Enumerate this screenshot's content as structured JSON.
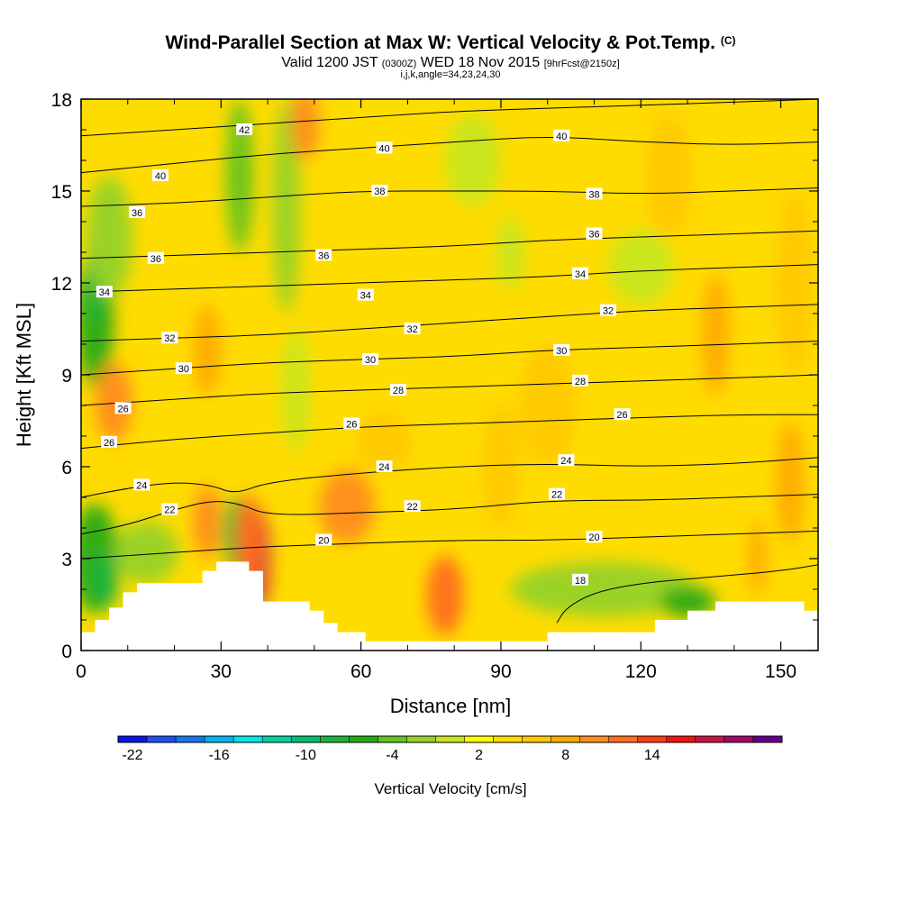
{
  "header": {
    "title": "Wind-Parallel Section at Max W: Vertical Velocity & Pot.Temp.",
    "copyright": "(C)",
    "valid_prefix": "Valid 1200 JST",
    "valid_utc": "(0300Z)",
    "valid_date": "WED 18 Nov 2015",
    "forecast": "[9hrFcst@2150z]",
    "grid_info": "i,j,k,angle=34,23,24,30"
  },
  "chart_data": {
    "type": "heatmap",
    "xlabel": "Distance [nm]",
    "ylabel": "Height [Kft MSL]",
    "xlim": [
      0,
      158
    ],
    "ylim": [
      0,
      18
    ],
    "x_ticks": [
      0,
      30,
      60,
      90,
      120,
      150
    ],
    "y_ticks": [
      0,
      3,
      6,
      9,
      12,
      15,
      18
    ],
    "colorbar": {
      "label": "Vertical Velocity [cm/s]",
      "tick_labels": [
        "-22",
        "-16",
        "-10",
        "-4",
        "2",
        "8",
        "14"
      ],
      "tick_values": [
        -22,
        -16,
        -10,
        -4,
        2,
        8,
        14
      ],
      "range": [
        -22,
        20
      ],
      "step": 2,
      "colors": [
        "#0a14e6",
        "#1e50f0",
        "#1478f0",
        "#00b4f0",
        "#00e6e6",
        "#00d2a0",
        "#00c070",
        "#1eb43c",
        "#28aa14",
        "#64c31e",
        "#96d228",
        "#c8e61e",
        "#ffff00",
        "#ffdc00",
        "#ffc800",
        "#ffaa00",
        "#ff8c1e",
        "#ff6e1e",
        "#ff3c14",
        "#f01414",
        "#c81446",
        "#a00a64",
        "#64008c"
      ]
    },
    "terrain": [
      [
        0,
        0.6
      ],
      [
        3,
        0.6
      ],
      [
        3,
        1.0
      ],
      [
        6,
        1.0
      ],
      [
        6,
        1.4
      ],
      [
        9,
        1.4
      ],
      [
        9,
        1.9
      ],
      [
        12,
        1.9
      ],
      [
        12,
        2.2
      ],
      [
        26,
        2.2
      ],
      [
        26,
        2.6
      ],
      [
        29,
        2.6
      ],
      [
        29,
        2.9
      ],
      [
        36,
        2.9
      ],
      [
        36,
        2.6
      ],
      [
        39,
        2.6
      ],
      [
        39,
        1.6
      ],
      [
        49,
        1.6
      ],
      [
        49,
        1.3
      ],
      [
        52,
        1.3
      ],
      [
        52,
        0.9
      ],
      [
        55,
        0.9
      ],
      [
        55,
        0.6
      ],
      [
        61,
        0.6
      ],
      [
        61,
        0.3
      ],
      [
        100,
        0.3
      ],
      [
        100,
        0.6
      ],
      [
        123,
        0.6
      ],
      [
        123,
        1.0
      ],
      [
        130,
        1.0
      ],
      [
        130,
        1.3
      ],
      [
        136,
        1.3
      ],
      [
        136,
        1.6
      ],
      [
        155,
        1.6
      ],
      [
        155,
        1.3
      ],
      [
        158,
        1.3
      ]
    ],
    "theta_contours": [
      {
        "value": "18",
        "points": [
          [
            102,
            0.9
          ],
          [
            104,
            1.4
          ],
          [
            110,
            1.9
          ],
          [
            120,
            2.2
          ],
          [
            135,
            2.4
          ],
          [
            150,
            2.6
          ],
          [
            158,
            2.8
          ]
        ]
      },
      {
        "value": "20",
        "points": [
          [
            0,
            3.0
          ],
          [
            20,
            3.2
          ],
          [
            40,
            3.4
          ],
          [
            60,
            3.5
          ],
          [
            80,
            3.6
          ],
          [
            100,
            3.6
          ],
          [
            120,
            3.7
          ],
          [
            140,
            3.8
          ],
          [
            158,
            3.9
          ]
        ]
      },
      {
        "value": "22",
        "points": [
          [
            0,
            3.8
          ],
          [
            10,
            4.1
          ],
          [
            20,
            4.6
          ],
          [
            28,
            4.9
          ],
          [
            34,
            4.8
          ],
          [
            40,
            4.4
          ],
          [
            60,
            4.5
          ],
          [
            80,
            4.6
          ],
          [
            100,
            4.9
          ],
          [
            120,
            4.9
          ],
          [
            140,
            5.0
          ],
          [
            158,
            5.1
          ]
        ]
      },
      {
        "value": "24",
        "points": [
          [
            0,
            5.0
          ],
          [
            10,
            5.3
          ],
          [
            20,
            5.5
          ],
          [
            28,
            5.4
          ],
          [
            33,
            5.1
          ],
          [
            40,
            5.5
          ],
          [
            60,
            5.8
          ],
          [
            80,
            6.0
          ],
          [
            100,
            6.1
          ],
          [
            120,
            6.0
          ],
          [
            140,
            6.1
          ],
          [
            158,
            6.3
          ]
        ]
      },
      {
        "value": "26",
        "points": [
          [
            0,
            6.6
          ],
          [
            20,
            6.9
          ],
          [
            40,
            7.1
          ],
          [
            60,
            7.3
          ],
          [
            80,
            7.4
          ],
          [
            100,
            7.5
          ],
          [
            120,
            7.6
          ],
          [
            140,
            7.7
          ],
          [
            158,
            7.7
          ]
        ]
      },
      {
        "value": "28",
        "points": [
          [
            0,
            8.0
          ],
          [
            20,
            8.2
          ],
          [
            40,
            8.4
          ],
          [
            60,
            8.5
          ],
          [
            80,
            8.6
          ],
          [
            100,
            8.7
          ],
          [
            120,
            8.8
          ],
          [
            140,
            8.9
          ],
          [
            158,
            9.0
          ]
        ]
      },
      {
        "value": "30",
        "points": [
          [
            0,
            9.0
          ],
          [
            20,
            9.2
          ],
          [
            40,
            9.4
          ],
          [
            60,
            9.5
          ],
          [
            80,
            9.6
          ],
          [
            100,
            9.8
          ],
          [
            120,
            9.9
          ],
          [
            140,
            10.0
          ],
          [
            158,
            10.1
          ]
        ]
      },
      {
        "value": "32",
        "points": [
          [
            0,
            10.1
          ],
          [
            20,
            10.2
          ],
          [
            40,
            10.3
          ],
          [
            60,
            10.5
          ],
          [
            80,
            10.7
          ],
          [
            100,
            10.9
          ],
          [
            120,
            11.1
          ],
          [
            140,
            11.2
          ],
          [
            158,
            11.3
          ]
        ]
      },
      {
        "value": "34",
        "points": [
          [
            0,
            11.7
          ],
          [
            20,
            11.8
          ],
          [
            40,
            11.9
          ],
          [
            60,
            12.0
          ],
          [
            80,
            12.1
          ],
          [
            100,
            12.2
          ],
          [
            120,
            12.4
          ],
          [
            140,
            12.5
          ],
          [
            158,
            12.6
          ]
        ]
      },
      {
        "value": "36",
        "points": [
          [
            0,
            12.8
          ],
          [
            20,
            12.9
          ],
          [
            40,
            13.0
          ],
          [
            60,
            13.1
          ],
          [
            80,
            13.2
          ],
          [
            100,
            13.4
          ],
          [
            120,
            13.5
          ],
          [
            140,
            13.6
          ],
          [
            158,
            13.7
          ]
        ]
      },
      {
        "value": "38",
        "points": [
          [
            0,
            14.5
          ],
          [
            20,
            14.6
          ],
          [
            40,
            14.8
          ],
          [
            60,
            15.0
          ],
          [
            80,
            15.0
          ],
          [
            100,
            15.0
          ],
          [
            120,
            14.9
          ],
          [
            140,
            15.0
          ],
          [
            158,
            15.1
          ]
        ]
      },
      {
        "value": "40",
        "points": [
          [
            0,
            15.6
          ],
          [
            20,
            15.9
          ],
          [
            40,
            16.2
          ],
          [
            60,
            16.4
          ],
          [
            80,
            16.6
          ],
          [
            100,
            16.8
          ],
          [
            120,
            16.6
          ],
          [
            140,
            16.5
          ],
          [
            158,
            16.6
          ]
        ]
      },
      {
        "value": "42",
        "points": [
          [
            0,
            16.8
          ],
          [
            20,
            17.0
          ],
          [
            40,
            17.2
          ],
          [
            60,
            17.4
          ],
          [
            80,
            17.6
          ],
          [
            100,
            17.7
          ],
          [
            120,
            17.8
          ],
          [
            140,
            17.9
          ],
          [
            158,
            18.0
          ]
        ]
      }
    ],
    "contour_labels": [
      {
        "text": "18",
        "x": 107,
        "y": 2.3
      },
      {
        "text": "20",
        "x": 52,
        "y": 3.6
      },
      {
        "text": "20",
        "x": 110,
        "y": 3.7
      },
      {
        "text": "22",
        "x": 19,
        "y": 4.6
      },
      {
        "text": "22",
        "x": 71,
        "y": 4.7
      },
      {
        "text": "22",
        "x": 102,
        "y": 5.1
      },
      {
        "text": "24",
        "x": 13,
        "y": 5.4
      },
      {
        "text": "24",
        "x": 65,
        "y": 6.0
      },
      {
        "text": "24",
        "x": 104,
        "y": 6.2
      },
      {
        "text": "26",
        "x": 6,
        "y": 6.8
      },
      {
        "text": "26",
        "x": 58,
        "y": 7.4
      },
      {
        "text": "26",
        "x": 116,
        "y": 7.7
      },
      {
        "text": "26",
        "x": 9,
        "y": 7.9
      },
      {
        "text": "28",
        "x": 68,
        "y": 8.5
      },
      {
        "text": "28",
        "x": 107,
        "y": 8.8
      },
      {
        "text": "30",
        "x": 22,
        "y": 9.2
      },
      {
        "text": "30",
        "x": 62,
        "y": 9.5
      },
      {
        "text": "30",
        "x": 103,
        "y": 9.8
      },
      {
        "text": "32",
        "x": 19,
        "y": 10.2
      },
      {
        "text": "32",
        "x": 71,
        "y": 10.5
      },
      {
        "text": "32",
        "x": 113,
        "y": 11.1
      },
      {
        "text": "34",
        "x": 5,
        "y": 11.7
      },
      {
        "text": "34",
        "x": 61,
        "y": 11.6
      },
      {
        "text": "34",
        "x": 107,
        "y": 12.3
      },
      {
        "text": "36",
        "x": 16,
        "y": 12.8
      },
      {
        "text": "36",
        "x": 52,
        "y": 12.9
      },
      {
        "text": "36",
        "x": 110,
        "y": 13.6
      },
      {
        "text": "36",
        "x": 12,
        "y": 14.3
      },
      {
        "text": "38",
        "x": 64,
        "y": 15.0
      },
      {
        "text": "38",
        "x": 110,
        "y": 14.9
      },
      {
        "text": "40",
        "x": 17,
        "y": 15.5
      },
      {
        "text": "40",
        "x": 65,
        "y": 16.4
      },
      {
        "text": "40",
        "x": 103,
        "y": 16.8
      },
      {
        "text": "42",
        "x": 35,
        "y": 17.0
      }
    ],
    "w_features": [
      {
        "x": 3,
        "y": 10.8,
        "rx": 4,
        "ry": 2.2,
        "w": -8
      },
      {
        "x": 3,
        "y": 12.0,
        "rx": 2.5,
        "ry": 1.2,
        "w": -10
      },
      {
        "x": 6,
        "y": 13.5,
        "rx": 5,
        "ry": 2,
        "w": -4
      },
      {
        "x": 3,
        "y": 3.0,
        "rx": 5,
        "ry": 1.8,
        "w": -8
      },
      {
        "x": 5,
        "y": 2.3,
        "rx": 3,
        "ry": 0.9,
        "w": -10
      },
      {
        "x": 33,
        "y": 3.8,
        "rx": 2.5,
        "ry": 1.2,
        "w": -10
      },
      {
        "x": 34,
        "y": 15.5,
        "rx": 3,
        "ry": 2.5,
        "w": -6
      },
      {
        "x": 44,
        "y": 14.5,
        "rx": 3,
        "ry": 3.5,
        "w": -3
      },
      {
        "x": 112,
        "y": 2.0,
        "rx": 20,
        "ry": 0.9,
        "w": -3
      },
      {
        "x": 130,
        "y": 1.6,
        "rx": 6,
        "ry": 0.5,
        "w": -8
      },
      {
        "x": 14,
        "y": 3.2,
        "rx": 7,
        "ry": 1.0,
        "w": -4
      },
      {
        "x": 38,
        "y": 3.0,
        "rx": 2.5,
        "ry": 1.6,
        "w": 16
      },
      {
        "x": 36,
        "y": 3.5,
        "rx": 3,
        "ry": 1.6,
        "w": 10
      },
      {
        "x": 27,
        "y": 4.2,
        "rx": 3,
        "ry": 1.2,
        "w": 8
      },
      {
        "x": 57,
        "y": 4.7,
        "rx": 6,
        "ry": 1.2,
        "w": 8
      },
      {
        "x": 78,
        "y": 1.8,
        "rx": 4,
        "ry": 1.3,
        "w": 10
      },
      {
        "x": 7,
        "y": 8.1,
        "rx": 4,
        "ry": 1.3,
        "w": 8
      },
      {
        "x": 27,
        "y": 9.8,
        "rx": 3,
        "ry": 1.5,
        "w": 6
      },
      {
        "x": 136,
        "y": 10.3,
        "rx": 3,
        "ry": 2,
        "w": 6
      },
      {
        "x": 48,
        "y": 17.2,
        "rx": 3,
        "ry": 1.2,
        "w": 8
      },
      {
        "x": 126,
        "y": 15.5,
        "rx": 5,
        "ry": 2,
        "w": 5
      },
      {
        "x": 153,
        "y": 12,
        "rx": 4,
        "ry": 3,
        "w": 5
      },
      {
        "x": 152,
        "y": 5.5,
        "rx": 3,
        "ry": 2,
        "w": 6
      },
      {
        "x": 145,
        "y": 3.0,
        "rx": 2,
        "ry": 1.2,
        "w": 6
      },
      {
        "x": 100,
        "y": 8.0,
        "rx": 6,
        "ry": 2,
        "w": 4
      },
      {
        "x": 92,
        "y": 13.0,
        "rx": 3,
        "ry": 1.2,
        "w": -2
      },
      {
        "x": 46,
        "y": 8.5,
        "rx": 3,
        "ry": 2,
        "w": -2
      },
      {
        "x": 84,
        "y": 16.0,
        "rx": 6,
        "ry": 1.5,
        "w": -2
      },
      {
        "x": 120,
        "y": 12.5,
        "rx": 7,
        "ry": 1.2,
        "w": -1
      },
      {
        "x": 65,
        "y": 6.8,
        "rx": 6,
        "ry": 1.0,
        "w": 5
      },
      {
        "x": 90,
        "y": 6.0,
        "rx": 4,
        "ry": 2,
        "w": 4
      }
    ]
  }
}
